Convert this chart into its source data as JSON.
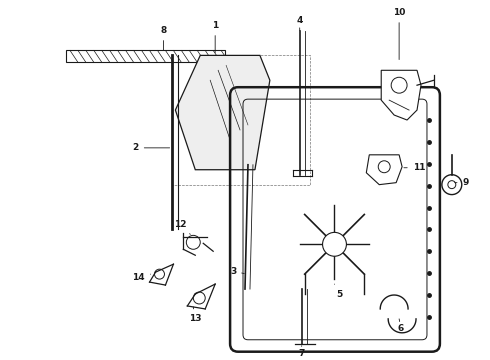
{
  "bg_color": "#ffffff",
  "line_color": "#1a1a1a",
  "fig_width": 4.9,
  "fig_height": 3.6,
  "dpi": 100,
  "label_fs": 6.5
}
